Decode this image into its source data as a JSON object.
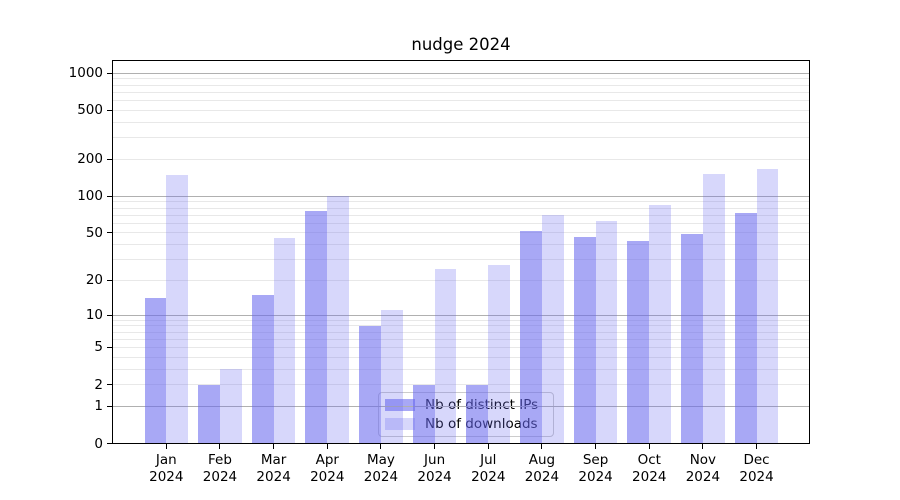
{
  "chart_data": {
    "type": "bar",
    "title": "nudge 2024",
    "categories": [
      "Jan 2024",
      "Feb 2024",
      "Mar 2024",
      "Apr 2024",
      "May 2024",
      "Jun 2024",
      "Jul 2024",
      "Aug 2024",
      "Sep 2024",
      "Oct 2024",
      "Nov 2024",
      "Dec 2024"
    ],
    "x_months": [
      "Jan",
      "Feb",
      "Mar",
      "Apr",
      "May",
      "Jun",
      "Jul",
      "Aug",
      "Sep",
      "Oct",
      "Nov",
      "Dec"
    ],
    "x_year": "2024",
    "series": [
      {
        "name": "Nb of distinct IPs",
        "base_color": "#6666ee",
        "alpha": 0.57,
        "values": [
          14,
          2,
          15,
          75,
          8,
          2,
          2,
          52,
          46,
          43,
          49,
          73
        ]
      },
      {
        "name": "Nb of downloads",
        "base_color": "#6666ee",
        "alpha": 0.26,
        "values": [
          150,
          3,
          45,
          100,
          11,
          25,
          27,
          70,
          63,
          85,
          153,
          166
        ]
      }
    ],
    "yscale": "log1p",
    "ylim": [
      0,
      1280
    ],
    "y_ticks": [
      0,
      1,
      2,
      5,
      10,
      20,
      50,
      100,
      200,
      500,
      1000
    ],
    "y_tick_labels": [
      "0",
      "1",
      "2",
      "5",
      "10",
      "20",
      "50",
      "100",
      "200",
      "500",
      "1000"
    ],
    "major_grid_values": [
      1,
      10,
      100,
      1000
    ],
    "minor_grid_values": [
      2,
      3,
      4,
      5,
      6,
      7,
      8,
      9,
      20,
      30,
      40,
      50,
      60,
      70,
      80,
      90,
      200,
      300,
      400,
      500,
      600,
      700,
      800,
      900
    ],
    "grid": true,
    "legend": {
      "entries": [
        "Nb of distinct IPs",
        "Nb of downloads"
      ],
      "position": "lower-center-inside"
    },
    "colors": {
      "major_grid": "#b0b0b0",
      "minor_grid": "#e8e8e8",
      "spine": "#000000",
      "tick": "#000000",
      "text": "#000000",
      "legend_border": "#cccccc",
      "legend_bg": "rgba(255,255,255,0.8)"
    }
  }
}
